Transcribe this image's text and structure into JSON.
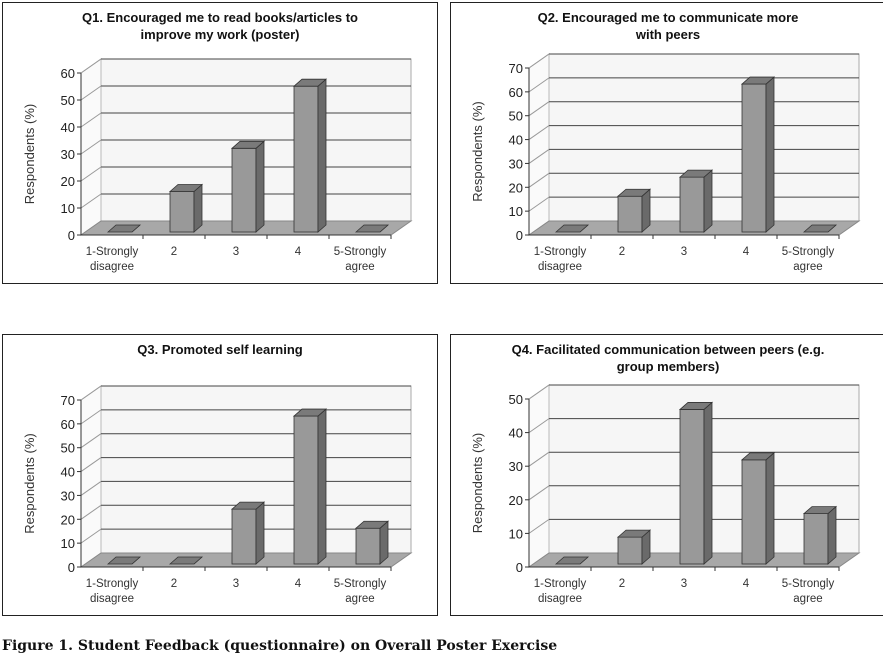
{
  "caption": "Figure 1.  Student Feedback (questionnaire) on Overall Poster Exercise",
  "chart_data": [
    {
      "type": "bar",
      "title": "Q1. Encouraged me to read books/articles to improve my work (poster)",
      "ylabel": "Respondents (%)",
      "xlabel": "",
      "categories": [
        "1-Strongly disagree",
        "2",
        "3",
        "4",
        "5-Strongly agree"
      ],
      "values": [
        0,
        15,
        31,
        54,
        0
      ],
      "ylim": [
        0,
        60
      ],
      "yticks": [
        0,
        10,
        20,
        30,
        40,
        50,
        60
      ],
      "grid": true
    },
    {
      "type": "bar",
      "title": "Q2. Encouraged me to communicate more with peers",
      "ylabel": "Respondents (%)",
      "xlabel": "",
      "categories": [
        "1-Strongly disagree",
        "2",
        "3",
        "4",
        "5-Strongly agree"
      ],
      "values": [
        0,
        15,
        23,
        62,
        0
      ],
      "ylim": [
        0,
        70
      ],
      "yticks": [
        0,
        10,
        20,
        30,
        40,
        50,
        60,
        70
      ],
      "grid": true
    },
    {
      "type": "bar",
      "title": "Q3. Promoted self learning",
      "ylabel": "Respondents (%)",
      "xlabel": "",
      "categories": [
        "1-Strongly disagree",
        "2",
        "3",
        "4",
        "5-Strongly agree"
      ],
      "values": [
        0,
        0,
        23,
        62,
        15
      ],
      "ylim": [
        0,
        70
      ],
      "yticks": [
        0,
        10,
        20,
        30,
        40,
        50,
        60,
        70
      ],
      "grid": true
    },
    {
      "type": "bar",
      "title": "Q4. Facilitated communication between peers (e.g. group members)",
      "ylabel": "Respondents (%)",
      "xlabel": "",
      "categories": [
        "1-Strongly disagree",
        "2",
        "3",
        "4",
        "5-Strongly agree"
      ],
      "values": [
        0,
        8,
        46,
        31,
        15
      ],
      "ylim": [
        0,
        50
      ],
      "yticks": [
        0,
        10,
        20,
        30,
        40,
        50
      ],
      "grid": true
    }
  ]
}
